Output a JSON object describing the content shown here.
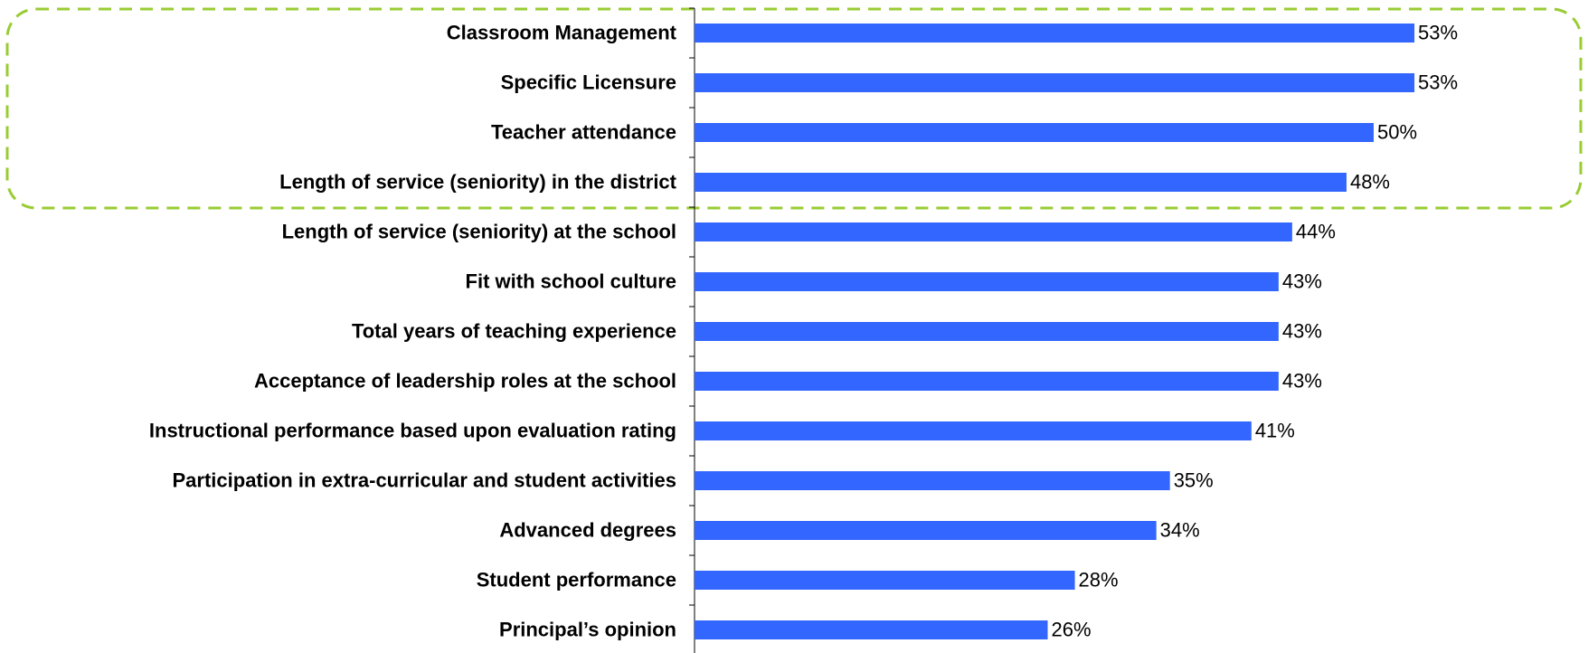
{
  "chart_data": {
    "type": "bar",
    "orientation": "horizontal",
    "categories": [
      "Classroom Management",
      "Specific Licensure",
      "Teacher attendance",
      "Length of service (seniority) in the district",
      "Length of service (seniority) at the school",
      "Fit with school culture",
      "Total years of teaching experience",
      "Acceptance of leadership roles at the school",
      "Instructional performance based upon evaluation rating",
      "Participation in extra-curricular and student activities",
      "Advanced degrees",
      "Student performance",
      "Principal’s opinion"
    ],
    "values": [
      53,
      53,
      50,
      48,
      44,
      43,
      43,
      43,
      41,
      35,
      34,
      28,
      26
    ],
    "value_labels": [
      "53%",
      "53%",
      "50%",
      "48%",
      "44%",
      "43%",
      "43%",
      "43%",
      "41%",
      "35%",
      "34%",
      "28%",
      "26%"
    ],
    "color": "#3366ff"
  }
}
